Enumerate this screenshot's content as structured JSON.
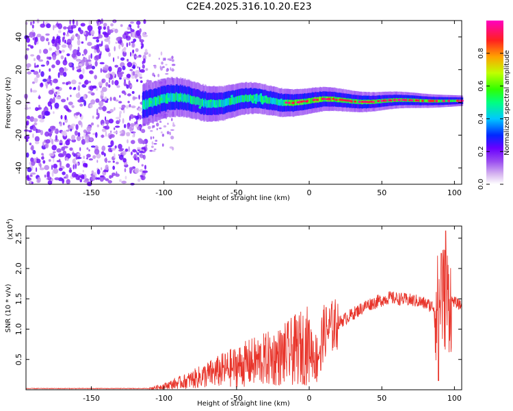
{
  "title": "C2E4.2025.316.10.20.E23",
  "chart_data": [
    {
      "type": "heatmap",
      "xlabel": "Height of straight line (km)",
      "ylabel": "Frequency (Hz)",
      "xlim": [
        -195,
        105
      ],
      "ylim": [
        -50,
        50
      ],
      "xticks": [
        -150,
        -100,
        -50,
        0,
        50,
        100
      ],
      "yticks": [
        -40,
        -20,
        0,
        20,
        40
      ],
      "noise_region_x": [
        -195,
        -112
      ],
      "signal_band": {
        "x_start": -115,
        "x_end": 105,
        "center_frequency_hz": 1,
        "halfwidth_hz_at_start": 8,
        "halfwidth_hz_at_end": 2
      },
      "colorbar": {
        "label": "Normalized spectral amplitude",
        "ticks": [
          0.0,
          0.2,
          0.4,
          0.6,
          0.8
        ],
        "range": [
          0,
          1
        ],
        "colors": [
          "#ffffff",
          "#d8b8f0",
          "#9a4df0",
          "#6a00ff",
          "#0028ff",
          "#00c8ff",
          "#00ff80",
          "#30ff00",
          "#c0ff00",
          "#ffa000",
          "#ff2020",
          "#ff00c0"
        ]
      }
    },
    {
      "type": "line",
      "xlabel": "Height of straight line (km)",
      "ylabel": "SNR (10 * v/v)",
      "scale_label": "(x10",
      "scale_exponent": "4",
      "xlim": [
        -195,
        105
      ],
      "ylim": [
        0,
        2.7
      ],
      "xticks": [
        -150,
        -100,
        -50,
        0,
        50,
        100
      ],
      "yticks": [
        "0.5",
        "1.0",
        "1.5",
        "2.0",
        "2.5"
      ],
      "color": "#e8342a",
      "profile": [
        {
          "x": -195,
          "y": 0.02
        },
        {
          "x": -110,
          "y": 0.02
        },
        {
          "x": -100,
          "y": 0.06
        },
        {
          "x": -85,
          "y": 0.14
        },
        {
          "x": -60,
          "y": 0.32
        },
        {
          "x": -40,
          "y": 0.45
        },
        {
          "x": -20,
          "y": 0.55
        },
        {
          "x": 0,
          "y": 0.75
        },
        {
          "x": 5,
          "y": 0.5
        },
        {
          "x": 10,
          "y": 0.95
        },
        {
          "x": 20,
          "y": 1.1
        },
        {
          "x": 40,
          "y": 1.4
        },
        {
          "x": 55,
          "y": 1.52
        },
        {
          "x": 75,
          "y": 1.46
        },
        {
          "x": 88,
          "y": 1.35
        },
        {
          "x": 92,
          "y": 1.55
        },
        {
          "x": 100,
          "y": 1.45
        },
        {
          "x": 105,
          "y": 1.38
        }
      ],
      "features": [
        {
          "x": 8,
          "y": 0.32,
          "note": "dip"
        },
        {
          "x": 91,
          "y": 2.25,
          "note": "peak"
        },
        {
          "x": 94,
          "y": 2.62,
          "note": "max"
        },
        {
          "x": 89,
          "y": 0.15,
          "note": "min"
        }
      ]
    }
  ]
}
